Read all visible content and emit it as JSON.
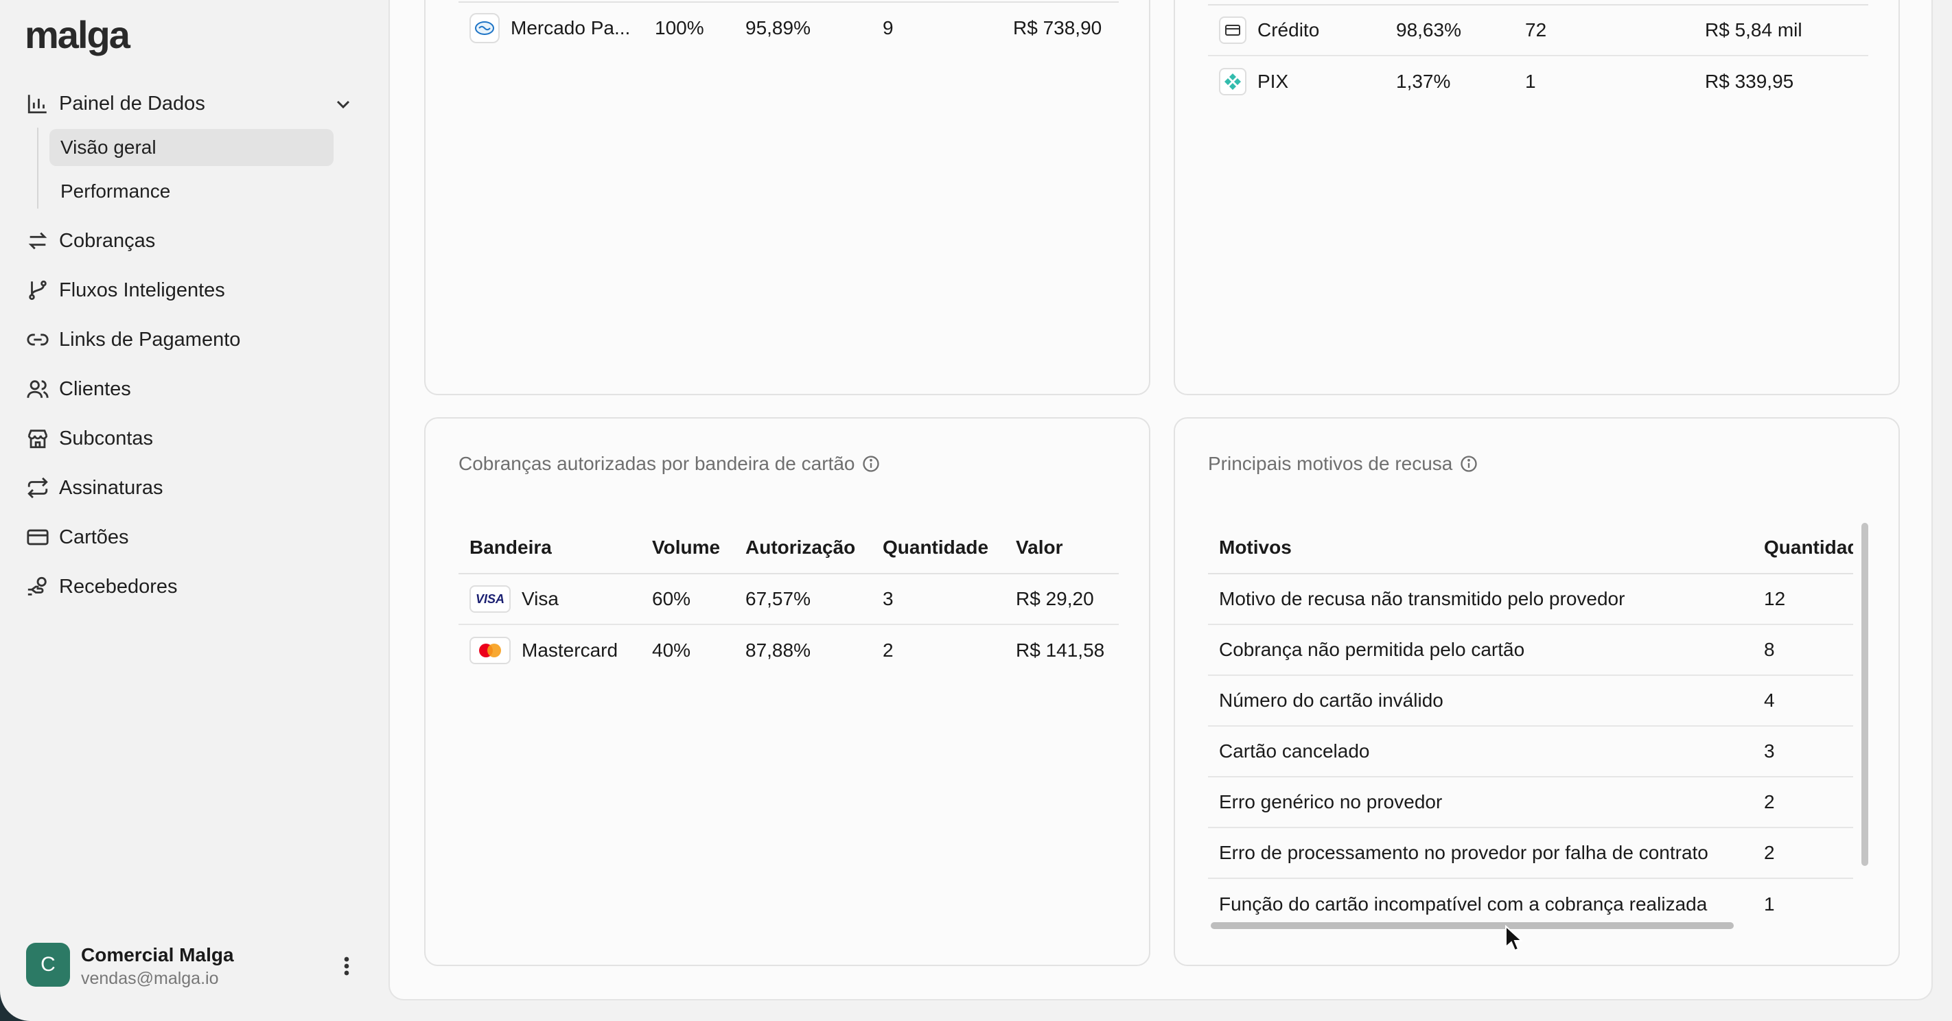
{
  "app": {
    "logo": "malga"
  },
  "sidebar": {
    "items": [
      {
        "label": "Painel de Dados",
        "icon": "bar-chart-icon"
      },
      {
        "label": "Cobranças",
        "icon": "arrows-swap-icon"
      },
      {
        "label": "Fluxos Inteligentes",
        "icon": "git-branch-icon"
      },
      {
        "label": "Links de Pagamento",
        "icon": "link-icon"
      },
      {
        "label": "Clientes",
        "icon": "users-icon"
      },
      {
        "label": "Subcontas",
        "icon": "store-icon"
      },
      {
        "label": "Assinaturas",
        "icon": "repeat-icon"
      },
      {
        "label": "Cartões",
        "icon": "credit-card-icon"
      },
      {
        "label": "Recebedores",
        "icon": "hand-coins-icon"
      }
    ],
    "subitems": [
      {
        "label": "Visão geral",
        "active": true
      },
      {
        "label": "Performance",
        "active": false
      }
    ],
    "user": {
      "initial": "C",
      "name": "Comercial Malga",
      "email": "vendas@malga.io"
    }
  },
  "top_left_card": {
    "rows": [
      {
        "name": "Mercado Pa...",
        "volume": "100%",
        "auth": "95,89%",
        "qty": "9",
        "value": "R$ 738,90"
      }
    ]
  },
  "top_right_card": {
    "rows": [
      {
        "name": "Crédito",
        "volume": "98,63%",
        "qty": "72",
        "value": "R$ 5,84 mil"
      },
      {
        "name": "PIX",
        "volume": "1,37%",
        "qty": "1",
        "value": "R$ 339,95"
      }
    ]
  },
  "brand_card": {
    "title": "Cobranças autorizadas por bandeira de cartão",
    "headers": [
      "Bandeira",
      "Volume",
      "Autorização",
      "Quantidade",
      "Valor"
    ],
    "rows": [
      {
        "brand": "Visa",
        "logo_text": "VISA",
        "volume": "60%",
        "auth": "67,57%",
        "qty": "3",
        "value": "R$ 29,20"
      },
      {
        "brand": "Mastercard",
        "volume": "40%",
        "auth": "87,88%",
        "qty": "2",
        "value": "R$ 141,58"
      }
    ]
  },
  "refusal_card": {
    "title": "Principais motivos de recusa",
    "headers": [
      "Motivos",
      "Quantidad"
    ],
    "rows": [
      {
        "reason": "Motivo de recusa não transmitido pelo provedor",
        "qty": "12"
      },
      {
        "reason": "Cobrança não permitida pelo cartão",
        "qty": "8"
      },
      {
        "reason": "Número do cartão inválido",
        "qty": "4"
      },
      {
        "reason": "Cartão cancelado",
        "qty": "3"
      },
      {
        "reason": "Erro genérico no provedor",
        "qty": "2"
      },
      {
        "reason": "Erro de processamento no provedor por falha de contrato",
        "qty": "2"
      },
      {
        "reason": "Função do cartão incompatível com a cobrança realizada",
        "qty": "1"
      }
    ]
  },
  "colors": {
    "accent": "#2c7a65",
    "active_bg": "#e3e3e3",
    "visa": "#1a1f71",
    "mc_red": "#eb001b",
    "mc_orange": "#f79e1b"
  }
}
